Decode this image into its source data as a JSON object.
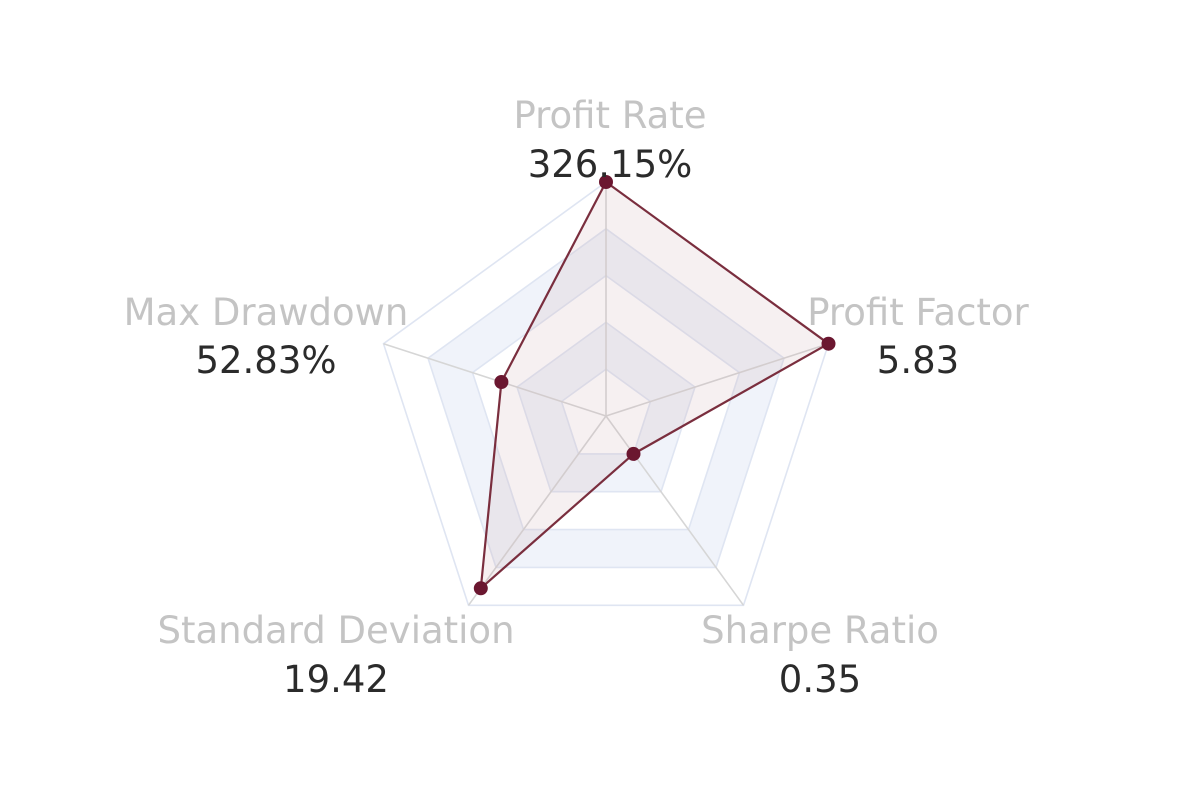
{
  "chart_data": {
    "type": "radar",
    "indicators": [
      {
        "name": "Profit Rate",
        "value_label": "326.15%",
        "normalized": 1.0
      },
      {
        "name": "Profit Factor",
        "value_label": "5.83",
        "normalized": 1.0
      },
      {
        "name": "Sharpe Ratio",
        "value_label": "0.35",
        "normalized": 0.2
      },
      {
        "name": "Standard Deviation",
        "value_label": "19.42",
        "normalized": 0.91
      },
      {
        "name": "Max Drawdown",
        "value_label": "52.83%",
        "normalized": 0.47
      }
    ],
    "series": [
      {
        "values": [
          326.15,
          5.83,
          0.35,
          19.42,
          52.83
        ]
      }
    ],
    "split_number": 5,
    "colors": {
      "series_line": "#7a2e3e",
      "series_point": "#6b1730",
      "series_fill": "#c9a4a9",
      "ring": "#dfe5f2",
      "band": "#eef2fa",
      "spoke": "#d6d6d6",
      "axis_label": "#c4c4c4",
      "value_label": "#2b2b2b"
    }
  }
}
